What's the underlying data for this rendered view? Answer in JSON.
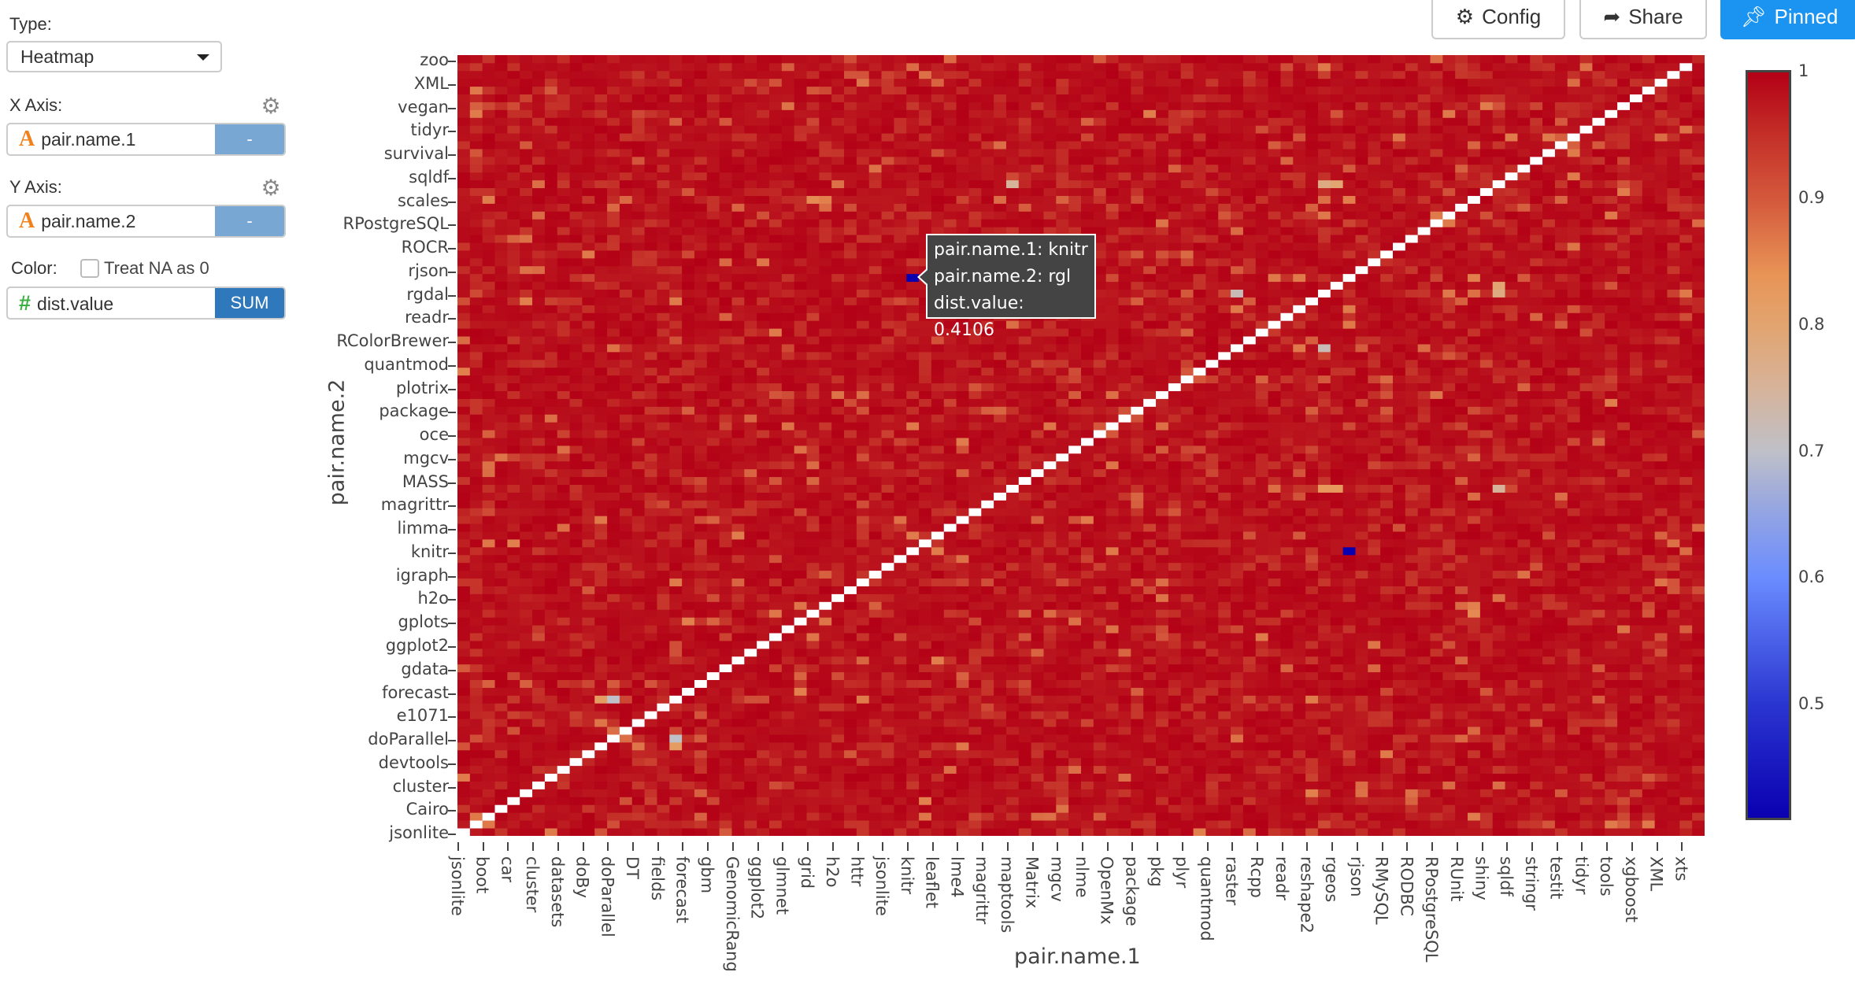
{
  "sidebar": {
    "type_label": "Type:",
    "type_value": "Heatmap",
    "x_axis_label": "X Axis:",
    "x_field": "pair.name.1",
    "x_field_button": "-",
    "y_axis_label": "Y Axis:",
    "y_field": "pair.name.2",
    "y_field_button": "-",
    "color_label": "Color:",
    "treat_na_label": "Treat NA as 0",
    "treat_na_checked": false,
    "color_field": "dist.value",
    "color_agg_button": "SUM",
    "icons": {
      "text_type": "A",
      "numeric_type": "#",
      "settings": "gear-icon"
    }
  },
  "toolbar": {
    "config_label": "Config",
    "share_label": "Share",
    "pinned_label": "Pinned",
    "accent": "#1a94f0"
  },
  "tooltip": {
    "line1": "pair.name.1: knitr",
    "line2": "pair.name.2: rgl",
    "line3": "dist.value: 0.4106"
  },
  "chart_data": {
    "type": "heatmap",
    "xlabel": "pair.name.1",
    "ylabel": "pair.name.2",
    "x_tick_labels": [
      "jsonlite",
      "boot",
      "car",
      "cluster",
      "datasets",
      "doBy",
      "doParallel",
      "DT",
      "fields",
      "forecast",
      "gbm",
      "GenomicRang",
      "ggplot2",
      "glmnet",
      "grid",
      "h2o",
      "httr",
      "jsonlite",
      "knitr",
      "leaflet",
      "lme4",
      "magrittr",
      "maptools",
      "Matrix",
      "mgcv",
      "nlme",
      "OpenMx",
      "package",
      "pkg",
      "plyr",
      "quantmod",
      "raster",
      "Rcpp",
      "readr",
      "reshape2",
      "rgeos",
      "rjson",
      "RMySQL",
      "RODBC",
      "RPostgreSQL",
      "RUnit",
      "shiny",
      "sqldf",
      "stringr",
      "testit",
      "tidyr",
      "tools",
      "xgboost",
      "XML",
      "xts"
    ],
    "y_tick_labels": [
      "zoo",
      "XML",
      "vegan",
      "tidyr",
      "survival",
      "sqldf",
      "scales",
      "RPostgreSQL",
      "ROCR",
      "rjson",
      "rgdal",
      "readr",
      "RColorBrewer",
      "quantmod",
      "plotrix",
      "package",
      "oce",
      "mgcv",
      "MASS",
      "magrittr",
      "limma",
      "knitr",
      "igraph",
      "h2o",
      "gplots",
      "ggplot2",
      "gdata",
      "forecast",
      "e1071",
      "doParallel",
      "devtools",
      "cluster",
      "Cairo",
      "jsonlite"
    ],
    "colorbar": {
      "range": [
        0.4106,
        1
      ],
      "tick_labels": [
        "1",
        "0.9",
        "0.8",
        "0.7",
        "0.6",
        "0.5"
      ],
      "tick_values": [
        1,
        0.9,
        0.8,
        0.7,
        0.6,
        0.5
      ],
      "colorscale": [
        [
          0.4106,
          "#0a00b0"
        ],
        [
          0.5,
          "#2a35d0"
        ],
        [
          0.6,
          "#6a8cff"
        ],
        [
          0.66,
          "#9aa8de"
        ],
        [
          0.7,
          "#bfc0c8"
        ],
        [
          0.75,
          "#d6b39a"
        ],
        [
          0.8,
          "#e2a470"
        ],
        [
          0.84,
          "#e89456"
        ],
        [
          0.9,
          "#d4583c"
        ],
        [
          0.95,
          "#c43028"
        ],
        [
          1,
          "#b30016"
        ]
      ]
    },
    "diagonal": "NA",
    "background_value_range": [
      0.93,
      1
    ],
    "notable_cells": [
      {
        "x": "knitr",
        "y": "rgl",
        "value": 0.4106
      },
      {
        "col": 69,
        "row": 37,
        "value": 0.75
      },
      {
        "col": 62,
        "row": 30,
        "value": 0.72
      },
      {
        "col": 83,
        "row": 30,
        "value": 0.72
      },
      {
        "col": 69,
        "row": 30,
        "value": 0.8
      },
      {
        "col": 70,
        "row": 29,
        "value": 0.78
      },
      {
        "col": 44,
        "row": 16,
        "value": 0.78
      },
      {
        "col": 69,
        "row": 16,
        "value": 0.78
      },
      {
        "col": 70,
        "row": 16,
        "value": 0.8
      },
      {
        "col": 17,
        "row": 87,
        "value": 0.7
      },
      {
        "col": 12,
        "row": 82,
        "value": 0.7
      },
      {
        "col": 11,
        "row": 82,
        "value": 0.82
      },
      {
        "col": 83,
        "row": 55,
        "value": 0.75
      },
      {
        "col": 69,
        "row": 55,
        "value": 0.83
      },
      {
        "col": 70,
        "row": 55,
        "value": 0.83
      },
      {
        "col": 28,
        "row": 18,
        "value": 0.85
      },
      {
        "col": 29,
        "row": 18,
        "value": 0.86
      },
      {
        "col": 29,
        "row": 70,
        "value": 0.82
      },
      {
        "col": 28,
        "row": 71,
        "value": 0.85
      }
    ]
  }
}
